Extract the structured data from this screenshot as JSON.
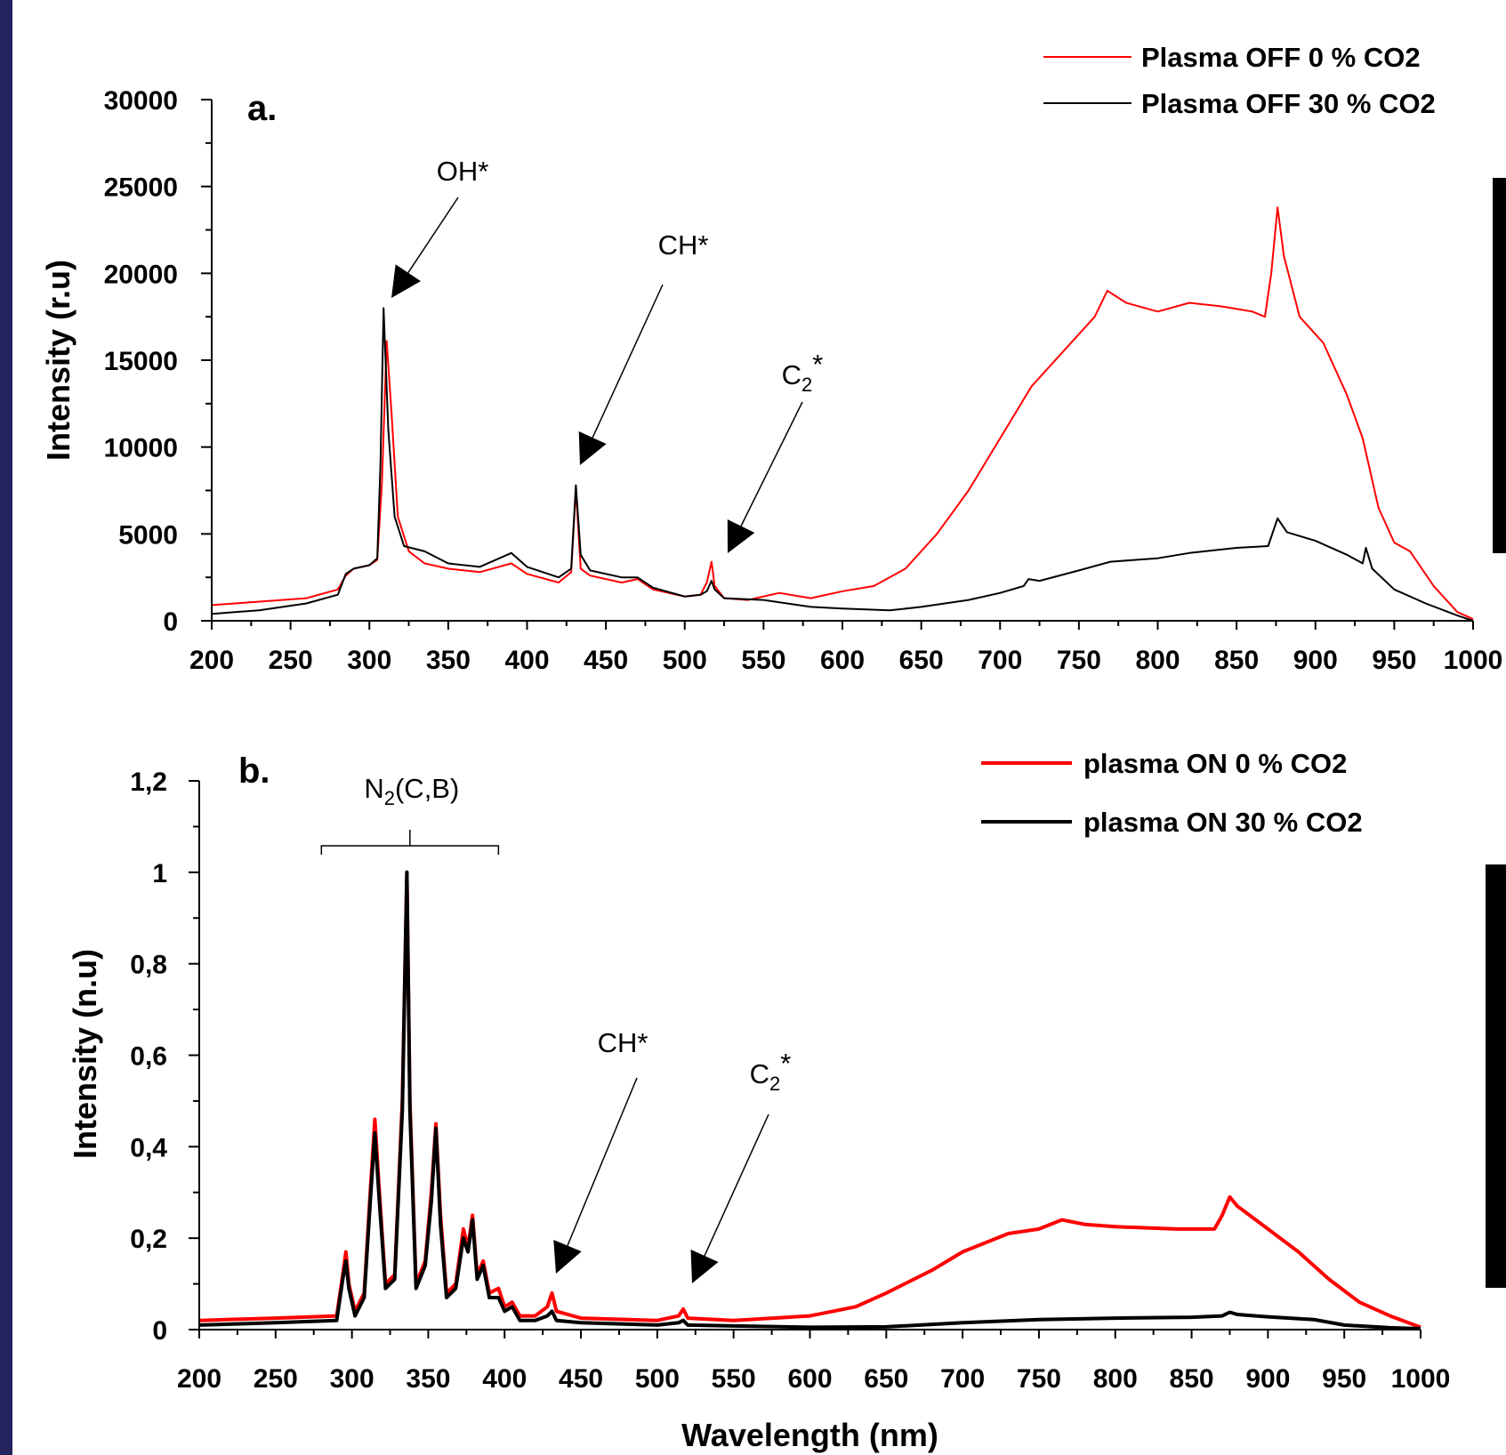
{
  "colors": {
    "border": "#23235e",
    "red": "#ff0000",
    "black": "#000000"
  },
  "chart_data": [
    {
      "type": "line",
      "panel_label": "a.",
      "xlabel": "",
      "ylabel": "Intensity (r.u)",
      "xlim": [
        200,
        1000
      ],
      "ylim": [
        0,
        30000
      ],
      "x_ticks": [
        "200",
        "250",
        "300",
        "350",
        "400",
        "450",
        "500",
        "550",
        "600",
        "650",
        "700",
        "750",
        "800",
        "850",
        "900",
        "950",
        "1000"
      ],
      "y_ticks": [
        "0",
        "5000",
        "10000",
        "15000",
        "20000",
        "25000",
        "30000"
      ],
      "legend_position": "top-right",
      "annotations": [
        {
          "label": "OH*",
          "x": 312,
          "y": 18500
        },
        {
          "label": "CH*",
          "x": 430,
          "y": 9000
        },
        {
          "label": "C2*",
          "label_main": "C",
          "label_sub": "2",
          "label_sup": "*",
          "x": 517,
          "y": 4000
        }
      ],
      "series": [
        {
          "name": "Plasma OFF 0 % CO2",
          "color": "#ff0000",
          "points": [
            [
              200,
              900
            ],
            [
              230,
              1100
            ],
            [
              260,
              1300
            ],
            [
              280,
              1800
            ],
            [
              285,
              2600
            ],
            [
              290,
              3000
            ],
            [
              300,
              3200
            ],
            [
              305,
              3500
            ],
            [
              308,
              8000
            ],
            [
              311,
              16100
            ],
            [
              314,
              12000
            ],
            [
              318,
              6000
            ],
            [
              325,
              4000
            ],
            [
              335,
              3300
            ],
            [
              350,
              3000
            ],
            [
              370,
              2800
            ],
            [
              390,
              3300
            ],
            [
              400,
              2700
            ],
            [
              420,
              2200
            ],
            [
              428,
              2800
            ],
            [
              431,
              7600
            ],
            [
              434,
              3000
            ],
            [
              440,
              2600
            ],
            [
              460,
              2200
            ],
            [
              470,
              2400
            ],
            [
              480,
              1800
            ],
            [
              500,
              1400
            ],
            [
              510,
              1500
            ],
            [
              514,
              2200
            ],
            [
              517,
              3400
            ],
            [
              519,
              2000
            ],
            [
              525,
              1300
            ],
            [
              540,
              1200
            ],
            [
              560,
              1600
            ],
            [
              580,
              1300
            ],
            [
              600,
              1700
            ],
            [
              620,
              2000
            ],
            [
              640,
              3000
            ],
            [
              660,
              5000
            ],
            [
              680,
              7500
            ],
            [
              700,
              10500
            ],
            [
              720,
              13500
            ],
            [
              740,
              15500
            ],
            [
              760,
              17500
            ],
            [
              768,
              19000
            ],
            [
              780,
              18300
            ],
            [
              800,
              17800
            ],
            [
              820,
              18300
            ],
            [
              840,
              18100
            ],
            [
              860,
              17800
            ],
            [
              868,
              17500
            ],
            [
              872,
              20000
            ],
            [
              876,
              23800
            ],
            [
              880,
              21000
            ],
            [
              890,
              17500
            ],
            [
              905,
              16000
            ],
            [
              920,
              13000
            ],
            [
              930,
              10500
            ],
            [
              940,
              6500
            ],
            [
              950,
              4500
            ],
            [
              960,
              4000
            ],
            [
              975,
              2000
            ],
            [
              990,
              500
            ],
            [
              1000,
              100
            ]
          ]
        },
        {
          "name": "Plasma OFF 30 % CO2",
          "color": "#000000",
          "points": [
            [
              200,
              400
            ],
            [
              230,
              600
            ],
            [
              260,
              1000
            ],
            [
              280,
              1500
            ],
            [
              285,
              2700
            ],
            [
              290,
              3000
            ],
            [
              300,
              3200
            ],
            [
              305,
              3600
            ],
            [
              307,
              9000
            ],
            [
              309,
              18000
            ],
            [
              312,
              11000
            ],
            [
              316,
              6000
            ],
            [
              322,
              4300
            ],
            [
              335,
              4000
            ],
            [
              350,
              3300
            ],
            [
              370,
              3100
            ],
            [
              390,
              3900
            ],
            [
              400,
              3100
            ],
            [
              420,
              2500
            ],
            [
              428,
              3000
            ],
            [
              431,
              7800
            ],
            [
              434,
              3800
            ],
            [
              440,
              2900
            ],
            [
              460,
              2500
            ],
            [
              470,
              2500
            ],
            [
              480,
              1900
            ],
            [
              500,
              1400
            ],
            [
              510,
              1500
            ],
            [
              514,
              1700
            ],
            [
              517,
              2300
            ],
            [
              519,
              1800
            ],
            [
              525,
              1300
            ],
            [
              550,
              1200
            ],
            [
              580,
              800
            ],
            [
              600,
              700
            ],
            [
              630,
              600
            ],
            [
              650,
              800
            ],
            [
              680,
              1200
            ],
            [
              700,
              1600
            ],
            [
              715,
              2000
            ],
            [
              718,
              2400
            ],
            [
              725,
              2300
            ],
            [
              750,
              2900
            ],
            [
              770,
              3400
            ],
            [
              800,
              3600
            ],
            [
              820,
              3900
            ],
            [
              850,
              4200
            ],
            [
              870,
              4300
            ],
            [
              876,
              5900
            ],
            [
              882,
              5100
            ],
            [
              900,
              4600
            ],
            [
              920,
              3800
            ],
            [
              930,
              3300
            ],
            [
              932,
              4200
            ],
            [
              936,
              3000
            ],
            [
              950,
              1800
            ],
            [
              970,
              1000
            ],
            [
              990,
              300
            ],
            [
              1000,
              0
            ]
          ]
        }
      ]
    },
    {
      "type": "line",
      "panel_label": "b.",
      "xlabel": "Wavelength (nm)",
      "ylabel": "Intensity (n.u)",
      "xlim": [
        200,
        1000
      ],
      "ylim": [
        0,
        1.2
      ],
      "x_ticks": [
        "200",
        "250",
        "300",
        "350",
        "400",
        "450",
        "500",
        "550",
        "600",
        "650",
        "700",
        "750",
        "800",
        "850",
        "900",
        "950",
        "1000"
      ],
      "y_ticks": [
        "0",
        "0,2",
        "0,4",
        "0,6",
        "0,8",
        "1",
        "1,2"
      ],
      "legend_position": "top-right",
      "annotations": [
        {
          "label": "N2(C,B)",
          "label_main": "N",
          "label_sub": "2",
          "label_tail": "(C,B)",
          "x_start": 280,
          "x_end": 396
        },
        {
          "label": "CH*",
          "x": 430,
          "y": 0.12
        },
        {
          "label": "C2*",
          "label_main": "C",
          "label_sub": "2",
          "label_sup": "*",
          "x": 517,
          "y": 0.1
        }
      ],
      "series": [
        {
          "name": "plasma ON 0 % CO2",
          "color": "#ff0000",
          "points": [
            [
              200,
              0.02
            ],
            [
              250,
              0.025
            ],
            [
              290,
              0.03
            ],
            [
              294,
              0.12
            ],
            [
              296,
              0.17
            ],
            [
              298,
              0.1
            ],
            [
              302,
              0.04
            ],
            [
              308,
              0.08
            ],
            [
              312,
              0.3
            ],
            [
              315,
              0.46
            ],
            [
              318,
              0.3
            ],
            [
              322,
              0.1
            ],
            [
              328,
              0.12
            ],
            [
              333,
              0.5
            ],
            [
              336,
              1.0
            ],
            [
              338,
              0.5
            ],
            [
              342,
              0.1
            ],
            [
              348,
              0.15
            ],
            [
              352,
              0.3
            ],
            [
              355,
              0.45
            ],
            [
              358,
              0.25
            ],
            [
              362,
              0.08
            ],
            [
              368,
              0.1
            ],
            [
              373,
              0.22
            ],
            [
              376,
              0.18
            ],
            [
              379,
              0.25
            ],
            [
              382,
              0.12
            ],
            [
              386,
              0.15
            ],
            [
              390,
              0.08
            ],
            [
              396,
              0.09
            ],
            [
              400,
              0.05
            ],
            [
              405,
              0.06
            ],
            [
              410,
              0.03
            ],
            [
              420,
              0.03
            ],
            [
              428,
              0.05
            ],
            [
              431,
              0.08
            ],
            [
              434,
              0.04
            ],
            [
              450,
              0.025
            ],
            [
              500,
              0.02
            ],
            [
              514,
              0.03
            ],
            [
              517,
              0.045
            ],
            [
              520,
              0.025
            ],
            [
              550,
              0.02
            ],
            [
              600,
              0.03
            ],
            [
              630,
              0.05
            ],
            [
              650,
              0.08
            ],
            [
              680,
              0.13
            ],
            [
              700,
              0.17
            ],
            [
              730,
              0.21
            ],
            [
              750,
              0.22
            ],
            [
              765,
              0.24
            ],
            [
              780,
              0.23
            ],
            [
              800,
              0.225
            ],
            [
              840,
              0.22
            ],
            [
              865,
              0.22
            ],
            [
              870,
              0.25
            ],
            [
              875,
              0.29
            ],
            [
              880,
              0.27
            ],
            [
              900,
              0.22
            ],
            [
              920,
              0.17
            ],
            [
              940,
              0.11
            ],
            [
              960,
              0.06
            ],
            [
              980,
              0.03
            ],
            [
              1000,
              0.005
            ]
          ]
        },
        {
          "name": "plasma ON 30 % CO2",
          "color": "#000000",
          "points": [
            [
              200,
              0.01
            ],
            [
              250,
              0.015
            ],
            [
              290,
              0.02
            ],
            [
              294,
              0.11
            ],
            [
              296,
              0.15
            ],
            [
              298,
              0.09
            ],
            [
              302,
              0.03
            ],
            [
              308,
              0.07
            ],
            [
              312,
              0.28
            ],
            [
              315,
              0.43
            ],
            [
              318,
              0.28
            ],
            [
              322,
              0.09
            ],
            [
              328,
              0.11
            ],
            [
              333,
              0.48
            ],
            [
              336,
              1.0
            ],
            [
              338,
              0.48
            ],
            [
              342,
              0.09
            ],
            [
              348,
              0.14
            ],
            [
              352,
              0.28
            ],
            [
              355,
              0.44
            ],
            [
              358,
              0.23
            ],
            [
              362,
              0.07
            ],
            [
              368,
              0.09
            ],
            [
              373,
              0.2
            ],
            [
              376,
              0.17
            ],
            [
              379,
              0.24
            ],
            [
              382,
              0.11
            ],
            [
              386,
              0.14
            ],
            [
              390,
              0.07
            ],
            [
              396,
              0.07
            ],
            [
              400,
              0.04
            ],
            [
              405,
              0.05
            ],
            [
              410,
              0.02
            ],
            [
              420,
              0.02
            ],
            [
              428,
              0.03
            ],
            [
              431,
              0.04
            ],
            [
              434,
              0.02
            ],
            [
              450,
              0.015
            ],
            [
              500,
              0.01
            ],
            [
              514,
              0.015
            ],
            [
              517,
              0.02
            ],
            [
              520,
              0.01
            ],
            [
              550,
              0.008
            ],
            [
              600,
              0.005
            ],
            [
              650,
              0.006
            ],
            [
              700,
              0.015
            ],
            [
              750,
              0.022
            ],
            [
              800,
              0.025
            ],
            [
              850,
              0.027
            ],
            [
              870,
              0.03
            ],
            [
              875,
              0.038
            ],
            [
              880,
              0.033
            ],
            [
              900,
              0.028
            ],
            [
              930,
              0.022
            ],
            [
              950,
              0.01
            ],
            [
              980,
              0.004
            ],
            [
              1000,
              0.002
            ]
          ]
        }
      ]
    }
  ]
}
